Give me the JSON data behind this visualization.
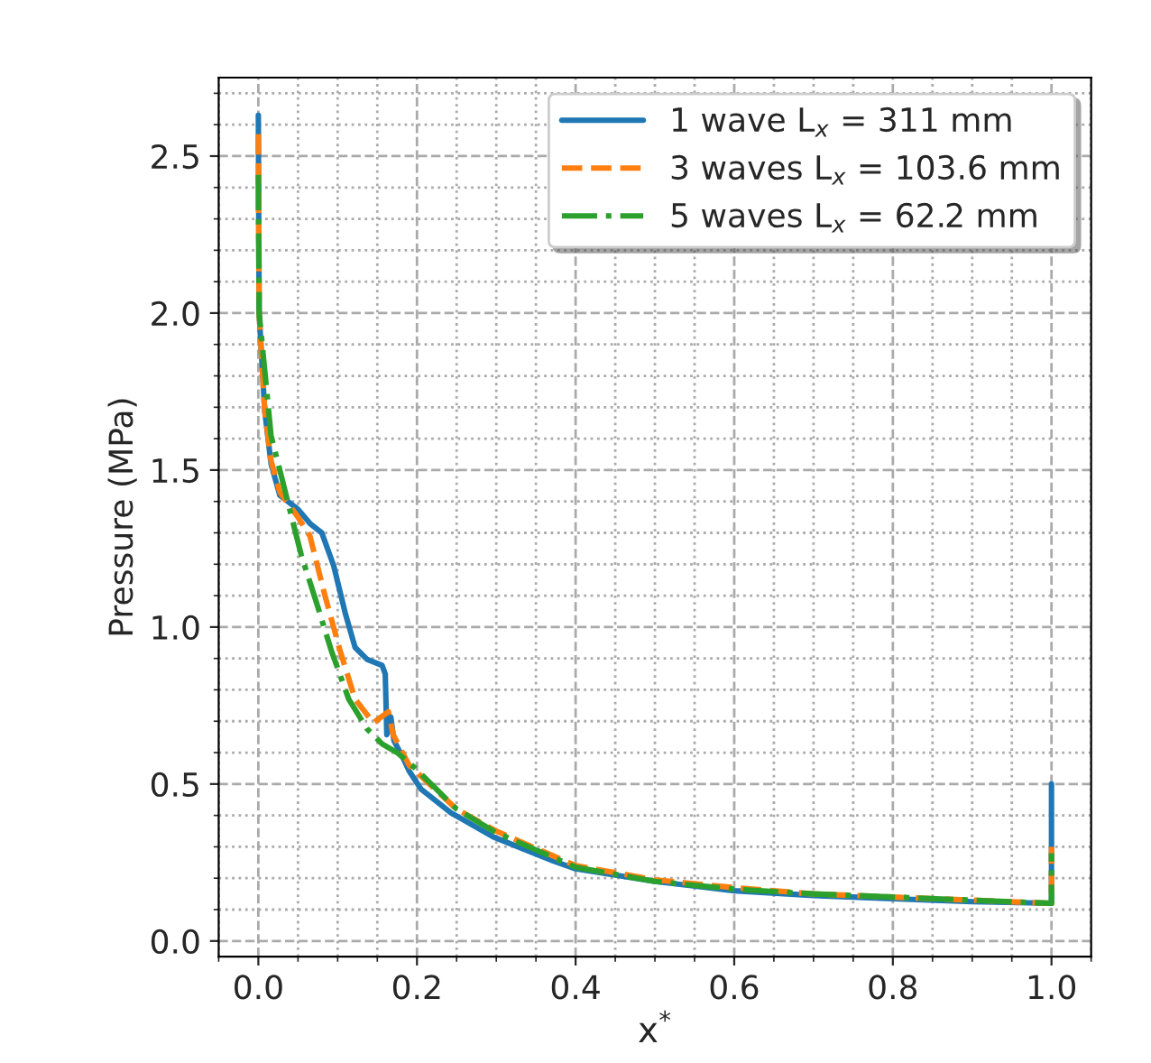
{
  "chart_data": {
    "type": "line",
    "xlabel": "x$^{*}$",
    "ylabel": "Pressure (MPa)",
    "xlim": [
      -0.05,
      1.05
    ],
    "ylim": [
      -0.05,
      2.75
    ],
    "xticks": [
      {
        "value": 0.0,
        "label": "0.0"
      },
      {
        "value": 0.2,
        "label": "0.2"
      },
      {
        "value": 0.4,
        "label": "0.4"
      },
      {
        "value": 0.6,
        "label": "0.6"
      },
      {
        "value": 0.8,
        "label": "0.8"
      },
      {
        "value": 1.0,
        "label": "1.0"
      }
    ],
    "yticks": [
      {
        "value": 0.0,
        "label": "0.0"
      },
      {
        "value": 0.5,
        "label": "0.5"
      },
      {
        "value": 1.0,
        "label": "1.0"
      },
      {
        "value": 1.5,
        "label": "1.5"
      },
      {
        "value": 2.0,
        "label": "2.0"
      },
      {
        "value": 2.5,
        "label": "2.5"
      }
    ],
    "grid": true,
    "legend": "top right",
    "marker": "none",
    "series": [
      {
        "name": "1 wave L$_{x}$ = 311 mm",
        "color": "#1f77b4",
        "line_style": "solid",
        "x": [
          0.0,
          0.001,
          0.008,
          0.016,
          0.027,
          0.05,
          0.065,
          0.08,
          0.095,
          0.11,
          0.122,
          0.137,
          0.156,
          0.16,
          0.162,
          0.167,
          0.171,
          0.183,
          0.19,
          0.205,
          0.243,
          0.296,
          0.372,
          0.4,
          0.5,
          0.6,
          0.7,
          0.8,
          0.9,
          1.0,
          1.0
        ],
        "values": [
          2.63,
          2.0,
          1.69,
          1.52,
          1.42,
          1.375,
          1.33,
          1.3,
          1.195,
          1.04,
          0.935,
          0.897,
          0.878,
          0.85,
          0.657,
          0.714,
          0.638,
          0.58,
          0.542,
          0.484,
          0.408,
          0.332,
          0.255,
          0.23,
          0.19,
          0.16,
          0.145,
          0.135,
          0.125,
          0.12,
          0.5
        ]
      },
      {
        "name": "3 waves L$_{x}$ = 103.6 mm",
        "color": "#ff7f0e",
        "line_style": "dashed",
        "x": [
          0.0,
          0.001,
          0.008,
          0.016,
          0.027,
          0.05,
          0.065,
          0.084,
          0.103,
          0.122,
          0.145,
          0.164,
          0.17,
          0.19,
          0.25,
          0.3,
          0.4,
          0.5,
          0.6,
          0.7,
          0.8,
          0.9,
          1.0,
          1.0
        ],
        "values": [
          2.57,
          2.0,
          1.69,
          1.53,
          1.43,
          1.35,
          1.29,
          1.1,
          0.925,
          0.77,
          0.695,
          0.73,
          0.657,
          0.56,
          0.42,
          0.35,
          0.24,
          0.195,
          0.17,
          0.15,
          0.14,
          0.13,
          0.12,
          0.3
        ]
      },
      {
        "name": "5 waves L$_{x}$ = 62.2 mm",
        "color": "#2ca02c",
        "line_style": "dashdot",
        "x": [
          0.0,
          0.001,
          0.016,
          0.031,
          0.042,
          0.054,
          0.073,
          0.092,
          0.114,
          0.137,
          0.156,
          0.175,
          0.198,
          0.25,
          0.3,
          0.4,
          0.5,
          0.6,
          0.7,
          0.8,
          0.9,
          1.0,
          1.0
        ],
        "values": [
          2.44,
          2.0,
          1.61,
          1.46,
          1.35,
          1.23,
          1.08,
          0.925,
          0.77,
          0.676,
          0.628,
          0.6,
          0.55,
          0.42,
          0.345,
          0.235,
          0.19,
          0.165,
          0.15,
          0.14,
          0.13,
          0.12,
          0.28
        ]
      }
    ]
  }
}
